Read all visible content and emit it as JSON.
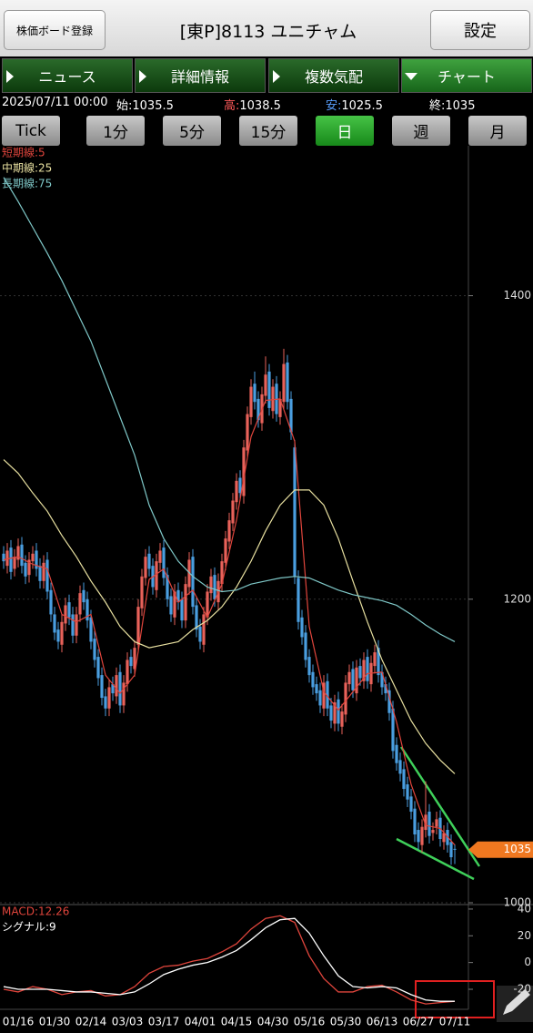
{
  "header": {
    "register": "株価ボード登録",
    "title": "[東P]8113 ユニチャム",
    "settings": "設定"
  },
  "tabs": [
    "ニュース",
    "詳細情報",
    "複数気配",
    "チャート"
  ],
  "quote": {
    "datetime": "2025/07/11 00:00",
    "open_label": "始:",
    "high_label": "高:",
    "low_label": "安:",
    "close_label": "終:"
  },
  "timeframes": [
    "Tick",
    "1分",
    "5分",
    "15分",
    "日",
    "週",
    "月"
  ],
  "chart_data": [
    {
      "type": "candlestick",
      "categories": [
        null,
        null,
        null,
        null,
        "01/16",
        null,
        null,
        null,
        null,
        null,
        null,
        null,
        null,
        null,
        "01/30",
        null,
        null,
        null,
        null,
        null,
        null,
        null,
        null,
        null,
        "02/14",
        null,
        null,
        null,
        null,
        null,
        null,
        null,
        null,
        null,
        "03/03",
        null,
        null,
        null,
        null,
        null,
        null,
        null,
        null,
        null,
        "03/17",
        null,
        null,
        null,
        null,
        null,
        null,
        null,
        null,
        null,
        "04/01",
        null,
        null,
        null,
        null,
        null,
        null,
        null,
        null,
        null,
        "04/15",
        null,
        null,
        null,
        null,
        null,
        null,
        null,
        null,
        null,
        "04/30",
        null,
        null,
        null,
        null,
        null,
        null,
        null,
        null,
        null,
        "05/16",
        null,
        null,
        null,
        null,
        null,
        null,
        null,
        null,
        null,
        "05/30",
        null,
        null,
        null,
        null,
        null,
        null,
        null,
        null,
        null,
        "06/13",
        null,
        null,
        null,
        null,
        null,
        null,
        null,
        null,
        null,
        "06/27",
        null,
        null,
        null,
        null,
        null,
        null,
        null,
        null,
        null,
        "07/11"
      ],
      "open": [
        1230,
        1222,
        1234,
        1220,
        1226,
        1236,
        1224,
        1216,
        1225,
        1232,
        1222,
        1212,
        1226,
        1206,
        1190,
        1180,
        1170,
        1184,
        1198,
        1190,
        1176,
        1190,
        1206,
        1200,
        1188,
        1174,
        1162,
        1150,
        1136,
        1128,
        1144,
        1136,
        1152,
        1130,
        1144,
        1162,
        1154,
        1170,
        1194,
        1214,
        1230,
        1222,
        1206,
        1224,
        1234,
        1216,
        1202,
        1188,
        1206,
        1200,
        1186,
        1208,
        1228,
        1196,
        1182,
        1170,
        1188,
        1204,
        1216,
        1198,
        1210,
        1224,
        1238,
        1250,
        1264,
        1280,
        1268,
        1298,
        1320,
        1342,
        1332,
        1316,
        1334,
        1350,
        1324,
        1342,
        1320,
        1330,
        1356,
        1332,
        1300,
        1214,
        1188,
        1178,
        1162,
        1152,
        1144,
        1140,
        1128,
        1146,
        1130,
        1118,
        1134,
        1116,
        1124,
        1144,
        1154,
        1138,
        1156,
        1146,
        1162,
        1144,
        1156,
        1168,
        1152,
        1144,
        1140,
        1128,
        1104,
        1094,
        1088,
        1078,
        1070,
        1062,
        1048,
        1038,
        1048,
        1060,
        1046,
        1050,
        1056,
        1040,
        1048,
        1040,
        1035.5
      ],
      "high": [
        1235,
        1237,
        1239,
        1233,
        1240,
        1241,
        1229,
        1231,
        1235,
        1237,
        1227,
        1229,
        1231,
        1211,
        1195,
        1185,
        1190,
        1201,
        1203,
        1195,
        1195,
        1209,
        1211,
        1205,
        1193,
        1179,
        1167,
        1155,
        1141,
        1147,
        1149,
        1155,
        1157,
        1150,
        1165,
        1167,
        1173,
        1200,
        1220,
        1233,
        1235,
        1227,
        1230,
        1237,
        1239,
        1221,
        1207,
        1210,
        1211,
        1205,
        1215,
        1231,
        1233,
        1201,
        1187,
        1195,
        1210,
        1220,
        1221,
        1217,
        1230,
        1245,
        1257,
        1270,
        1283,
        1285,
        1305,
        1327,
        1345,
        1350,
        1337,
        1340,
        1360,
        1355,
        1345,
        1347,
        1337,
        1365,
        1361,
        1337,
        1305,
        1219,
        1193,
        1183,
        1167,
        1157,
        1149,
        1145,
        1150,
        1151,
        1135,
        1137,
        1139,
        1131,
        1150,
        1157,
        1159,
        1160,
        1161,
        1165,
        1167,
        1163,
        1170,
        1173,
        1157,
        1149,
        1145,
        1133,
        1109,
        1099,
        1093,
        1083,
        1075,
        1067,
        1053,
        1055,
        1080,
        1065,
        1053,
        1060,
        1061,
        1051,
        1053,
        1045,
        1038.5
      ],
      "low": [
        1220,
        1217,
        1213,
        1215,
        1221,
        1217,
        1210,
        1211,
        1220,
        1215,
        1207,
        1207,
        1200,
        1185,
        1173,
        1167,
        1165,
        1179,
        1183,
        1171,
        1171,
        1185,
        1193,
        1181,
        1167,
        1155,
        1143,
        1130,
        1123,
        1123,
        1133,
        1131,
        1125,
        1125,
        1139,
        1151,
        1149,
        1165,
        1189,
        1209,
        1215,
        1203,
        1201,
        1219,
        1209,
        1195,
        1185,
        1183,
        1193,
        1181,
        1181,
        1203,
        1190,
        1175,
        1167,
        1165,
        1183,
        1199,
        1195,
        1193,
        1205,
        1219,
        1233,
        1245,
        1259,
        1265,
        1263,
        1293,
        1315,
        1325,
        1313,
        1311,
        1329,
        1321,
        1319,
        1317,
        1315,
        1325,
        1325,
        1305,
        1210,
        1180,
        1170,
        1155,
        1145,
        1137,
        1133,
        1125,
        1123,
        1123,
        1115,
        1113,
        1113,
        1111,
        1119,
        1139,
        1135,
        1133,
        1143,
        1141,
        1141,
        1139,
        1151,
        1145,
        1137,
        1133,
        1120,
        1095,
        1087,
        1080,
        1070,
        1063,
        1055,
        1040,
        1035,
        1033,
        1043,
        1039,
        1041,
        1045,
        1037,
        1035,
        1033,
        1025,
        1025.5
      ],
      "close": [
        1225,
        1232,
        1218,
        1228,
        1235,
        1222,
        1215,
        1226,
        1230,
        1220,
        1212,
        1224,
        1205,
        1190,
        1178,
        1172,
        1185,
        1196,
        1188,
        1176,
        1190,
        1204,
        1198,
        1186,
        1172,
        1160,
        1148,
        1135,
        1128,
        1142,
        1138,
        1150,
        1130,
        1145,
        1160,
        1156,
        1168,
        1195,
        1215,
        1228,
        1220,
        1208,
        1225,
        1232,
        1214,
        1200,
        1190,
        1205,
        1198,
        1186,
        1210,
        1226,
        1195,
        1180,
        1172,
        1190,
        1205,
        1215,
        1200,
        1212,
        1225,
        1240,
        1252,
        1265,
        1278,
        1270,
        1300,
        1322,
        1340,
        1330,
        1318,
        1335,
        1348,
        1326,
        1340,
        1322,
        1332,
        1355,
        1330,
        1310,
        1215,
        1185,
        1175,
        1160,
        1150,
        1142,
        1138,
        1130,
        1145,
        1128,
        1120,
        1132,
        1118,
        1126,
        1145,
        1152,
        1140,
        1155,
        1148,
        1160,
        1146,
        1158,
        1165,
        1150,
        1142,
        1138,
        1125,
        1100,
        1092,
        1085,
        1075,
        1068,
        1060,
        1045,
        1040,
        1050,
        1058,
        1044,
        1048,
        1055,
        1042,
        1046,
        1038,
        1030,
        1035
      ],
      "up_color": "#e8625a",
      "down_color": "#4a9ee0",
      "series": [
        {
          "name": "短期線:5",
          "color": "#e0453c",
          "x": [
            0,
            4,
            8,
            12,
            16,
            20,
            24,
            28,
            32,
            36,
            40,
            44,
            48,
            52,
            56,
            60,
            64,
            68,
            72,
            76,
            80,
            84,
            88,
            92,
            96,
            100,
            104,
            108,
            112,
            116,
            120,
            124
          ],
          "values": [
            1226,
            1228,
            1223,
            1220,
            1190,
            1185,
            1190,
            1150,
            1138,
            1150,
            1213,
            1220,
            1198,
            1206,
            1188,
            1210,
            1252,
            1307,
            1331,
            1332,
            1304,
            1182,
            1139,
            1127,
            1139,
            1151,
            1152,
            1119,
            1078,
            1051,
            1049,
            1038
          ]
        },
        {
          "name": "中期線:25",
          "color": "#e8e0a0",
          "x": [
            0,
            4,
            8,
            12,
            16,
            20,
            24,
            28,
            32,
            36,
            40,
            44,
            48,
            52,
            56,
            60,
            64,
            68,
            72,
            76,
            80,
            84,
            88,
            92,
            96,
            100,
            104,
            108,
            112,
            116,
            120,
            124
          ],
          "values": [
            1292,
            1283,
            1270,
            1258,
            1242,
            1228,
            1212,
            1198,
            1182,
            1172,
            1168,
            1170,
            1172,
            1180,
            1186,
            1195,
            1208,
            1225,
            1245,
            1262,
            1272,
            1272,
            1262,
            1240,
            1212,
            1185,
            1160,
            1140,
            1120,
            1105,
            1094,
            1085
          ]
        },
        {
          "name": "長期線:75",
          "color": "#7fc8c8",
          "x": [
            0,
            4,
            8,
            12,
            16,
            20,
            24,
            28,
            32,
            36,
            40,
            44,
            48,
            52,
            56,
            60,
            64,
            68,
            72,
            76,
            80,
            84,
            88,
            92,
            96,
            100,
            104,
            108,
            112,
            116,
            120,
            124
          ],
          "values": [
            1478,
            1462,
            1445,
            1428,
            1410,
            1390,
            1370,
            1345,
            1320,
            1295,
            1262,
            1240,
            1225,
            1215,
            1208,
            1205,
            1206,
            1210,
            1212,
            1214,
            1215,
            1214,
            1210,
            1206,
            1203,
            1201,
            1199,
            1196,
            1190,
            1183,
            1177,
            1172
          ]
        }
      ],
      "ylim": [
        1000,
        1500
      ],
      "yticks": [
        1000,
        1200,
        1400
      ],
      "grid": true
    },
    {
      "type": "line",
      "x": [
        0,
        4,
        8,
        12,
        16,
        20,
        24,
        28,
        32,
        36,
        40,
        44,
        48,
        52,
        56,
        60,
        64,
        68,
        72,
        76,
        80,
        84,
        88,
        92,
        96,
        100,
        104,
        108,
        112,
        116,
        120,
        124
      ],
      "series": [
        {
          "name": "MACD:12.26",
          "color": "#e0453c",
          "values": [
            -20,
            -22,
            -18,
            -20,
            -24,
            -22,
            -21,
            -25,
            -24,
            -18,
            -8,
            -3,
            -2,
            1,
            3,
            8,
            14,
            25,
            33,
            35,
            30,
            5,
            -12,
            -22,
            -22,
            -18,
            -17,
            -22,
            -28,
            -31,
            -30,
            -29
          ]
        },
        {
          "name": "シグナル:9",
          "color": "#ffffff",
          "values": [
            -18,
            -20,
            -20,
            -20,
            -21,
            -22,
            -22,
            -23,
            -24,
            -22,
            -16,
            -9,
            -5,
            -2,
            0,
            4,
            9,
            17,
            26,
            32,
            33,
            22,
            5,
            -10,
            -18,
            -19,
            -18,
            -19,
            -24,
            -28,
            -29,
            -29
          ]
        }
      ],
      "ylim": [
        -35,
        42
      ],
      "yticks": [
        40,
        20,
        0,
        -20
      ],
      "grid": false
    }
  ]
}
